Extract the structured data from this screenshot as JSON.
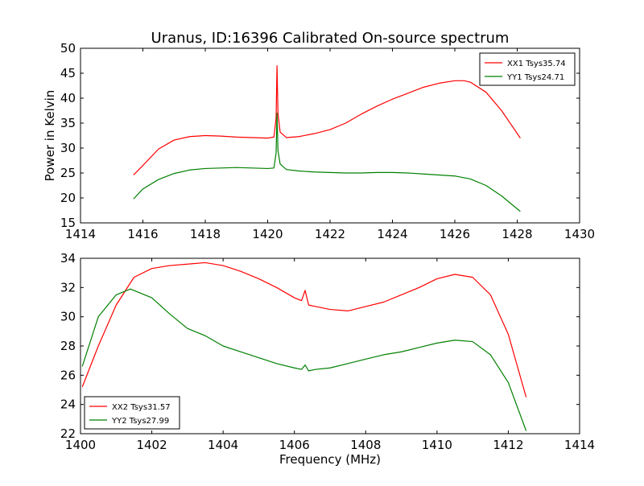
{
  "figure": {
    "title": "Uranus, ID:16396 Calibrated On-source spectrum",
    "xlabel": "Frequency (MHz)"
  },
  "chart_data": [
    {
      "type": "line",
      "title": "Uranus, ID:16396 Calibrated On-source spectrum",
      "xlabel": "",
      "ylabel": "Power in Kelvin",
      "xlim": [
        1414,
        1430
      ],
      "ylim": [
        15,
        50
      ],
      "xticks": [
        1414,
        1416,
        1418,
        1420,
        1422,
        1424,
        1426,
        1428,
        1430
      ],
      "yticks": [
        15,
        20,
        25,
        30,
        35,
        40,
        45,
        50
      ],
      "grid": false,
      "legend_position": "top-right",
      "series": [
        {
          "name": "XX1 Tsys35.74",
          "color": "#ff0000",
          "x": [
            1415.7,
            1416.0,
            1416.5,
            1417.0,
            1417.5,
            1418.0,
            1418.5,
            1419.0,
            1419.5,
            1420.0,
            1420.2,
            1420.27,
            1420.3,
            1420.33,
            1420.4,
            1420.6,
            1421.0,
            1421.5,
            1422.0,
            1422.5,
            1423.0,
            1423.5,
            1424.0,
            1424.5,
            1425.0,
            1425.5,
            1426.0,
            1426.3,
            1426.5,
            1427.0,
            1427.5,
            1428.1
          ],
          "y": [
            24.6,
            26.5,
            29.8,
            31.6,
            32.3,
            32.5,
            32.4,
            32.2,
            32.1,
            32.0,
            32.2,
            36.0,
            46.5,
            37.0,
            33.2,
            32.1,
            32.3,
            32.9,
            33.7,
            35.0,
            36.8,
            38.4,
            39.8,
            41.0,
            42.2,
            43.0,
            43.5,
            43.5,
            43.2,
            41.2,
            37.5,
            32.0
          ]
        },
        {
          "name": "YY1 Tsys24.71",
          "color": "#008000",
          "x": [
            1415.7,
            1416.0,
            1416.5,
            1417.0,
            1417.5,
            1418.0,
            1418.5,
            1419.0,
            1419.5,
            1420.0,
            1420.2,
            1420.27,
            1420.3,
            1420.33,
            1420.4,
            1420.6,
            1421.0,
            1421.5,
            1422.0,
            1422.5,
            1423.0,
            1423.5,
            1424.0,
            1424.5,
            1425.0,
            1425.5,
            1426.0,
            1426.5,
            1427.0,
            1427.5,
            1428.1
          ],
          "y": [
            19.8,
            21.8,
            23.7,
            24.9,
            25.6,
            25.9,
            26.0,
            26.1,
            26.0,
            25.9,
            26.0,
            29.0,
            37.0,
            29.5,
            26.8,
            25.7,
            25.4,
            25.2,
            25.1,
            25.0,
            25.0,
            25.1,
            25.1,
            25.0,
            24.8,
            24.6,
            24.4,
            23.8,
            22.5,
            20.4,
            17.3
          ]
        }
      ]
    },
    {
      "type": "line",
      "title": "",
      "xlabel": "Frequency (MHz)",
      "ylabel": "",
      "xlim": [
        1400,
        1414
      ],
      "ylim": [
        22,
        34
      ],
      "xticks": [
        1400,
        1402,
        1404,
        1406,
        1408,
        1410,
        1412,
        1414
      ],
      "yticks": [
        22,
        24,
        26,
        28,
        30,
        32,
        34
      ],
      "grid": false,
      "legend_position": "bottom-left",
      "series": [
        {
          "name": "XX2 Tsys31.57",
          "color": "#ff0000",
          "x": [
            1400.05,
            1400.5,
            1401.0,
            1401.5,
            1402.0,
            1402.5,
            1403.0,
            1403.5,
            1404.0,
            1404.5,
            1405.0,
            1405.5,
            1406.0,
            1406.2,
            1406.3,
            1406.4,
            1406.6,
            1407.0,
            1407.5,
            1408.0,
            1408.5,
            1409.0,
            1409.5,
            1410.0,
            1410.5,
            1411.0,
            1411.5,
            1412.0,
            1412.5
          ],
          "y": [
            25.2,
            28.0,
            30.8,
            32.7,
            33.3,
            33.5,
            33.6,
            33.7,
            33.5,
            33.1,
            32.6,
            32.0,
            31.3,
            31.1,
            31.8,
            30.8,
            30.7,
            30.5,
            30.4,
            30.7,
            31.0,
            31.5,
            32.0,
            32.6,
            32.9,
            32.7,
            31.5,
            28.8,
            24.5
          ]
        },
        {
          "name": "YY2 Tsys27.99",
          "color": "#008000",
          "x": [
            1400.05,
            1400.5,
            1401.0,
            1401.4,
            1402.0,
            1402.5,
            1403.0,
            1403.5,
            1404.0,
            1404.5,
            1405.0,
            1405.5,
            1406.0,
            1406.2,
            1406.3,
            1406.4,
            1406.6,
            1407.0,
            1407.5,
            1408.0,
            1408.5,
            1409.0,
            1409.5,
            1410.0,
            1410.5,
            1411.0,
            1411.5,
            1412.0,
            1412.5
          ],
          "y": [
            26.6,
            30.0,
            31.5,
            31.9,
            31.3,
            30.2,
            29.2,
            28.7,
            28.0,
            27.6,
            27.2,
            26.8,
            26.5,
            26.4,
            26.7,
            26.3,
            26.4,
            26.5,
            26.8,
            27.1,
            27.4,
            27.6,
            27.9,
            28.2,
            28.4,
            28.3,
            27.4,
            25.5,
            22.2
          ]
        }
      ]
    }
  ]
}
